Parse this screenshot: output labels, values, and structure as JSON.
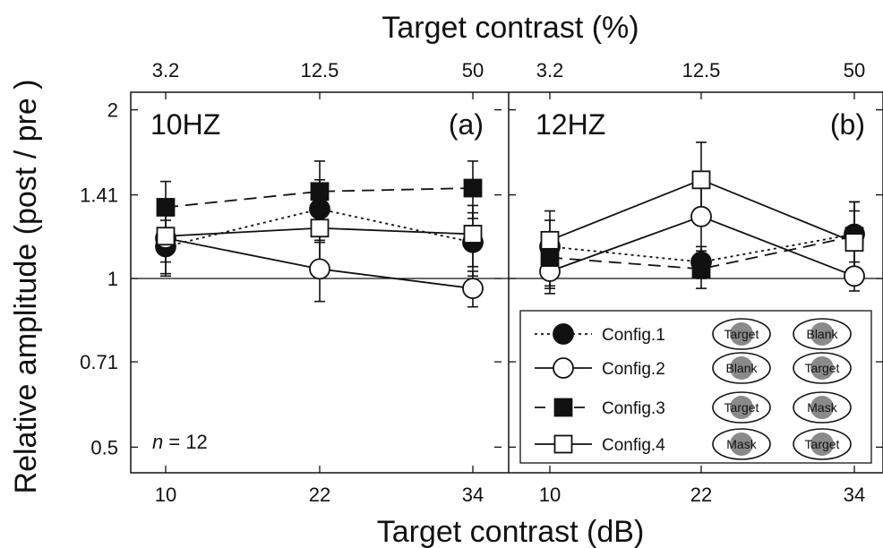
{
  "chart_data": {
    "type": "line",
    "top_axis_title": "Target contrast (%)",
    "bottom_axis_title": "Target contrast (dB)",
    "ylabel": "Relative amplitude (post / pre )",
    "y_scale": "log2",
    "ylim": [
      0.45,
      2.15
    ],
    "y_ticks": [
      0.5,
      0.71,
      1,
      1.41,
      2
    ],
    "y_tick_labels": [
      "0.5",
      "0.71",
      "1",
      "1.41",
      "2"
    ],
    "x": [
      10,
      22,
      34
    ],
    "x_tick_labels": [
      "10",
      "22",
      "34"
    ],
    "top_tick_labels": [
      "3.2",
      "12.5",
      "50"
    ],
    "reference_line": 1,
    "n_label": {
      "prefix": "n",
      "suffix": " = 12"
    },
    "panels": [
      {
        "name": "10HZ",
        "tag": "(a)",
        "series": [
          {
            "name": "Config.1",
            "values": [
              1.14,
              1.33,
              1.16
            ],
            "errors": [
              0.13,
              0.17,
              0.15
            ]
          },
          {
            "name": "Config.2",
            "values": [
              1.18,
              1.04,
              0.96
            ],
            "errors": [
              0.16,
              0.13,
              0.07
            ]
          },
          {
            "name": "Config.3",
            "values": [
              1.34,
              1.43,
              1.45
            ],
            "errors": [
              0.15,
              0.19,
              0.17
            ]
          },
          {
            "name": "Config.4",
            "values": [
              1.19,
              1.23,
              1.2
            ],
            "errors": [
              0.12,
              0.17,
              0.15
            ]
          }
        ]
      },
      {
        "name": "12HZ",
        "tag": "(b)",
        "series": [
          {
            "name": "Config.1",
            "values": [
              1.14,
              1.07,
              1.2
            ],
            "errors": [
              0.18,
              0.07,
              0.17
            ]
          },
          {
            "name": "Config.2",
            "values": [
              1.03,
              1.29,
              1.01
            ],
            "errors": [
              0.09,
              0.18,
              0.06
            ]
          },
          {
            "name": "Config.3",
            "values": [
              1.09,
              1.04,
              1.19
            ],
            "errors": [
              0.12,
              0.08,
              0.18
            ]
          },
          {
            "name": "Config.4",
            "values": [
              1.17,
              1.5,
              1.16
            ],
            "errors": [
              0.1,
              0.25,
              0.16
            ]
          }
        ]
      }
    ],
    "legend": {
      "placement": "lower-right of panel (b)",
      "entries": [
        {
          "label": "Config.1",
          "marker": "filled-circle",
          "line": "dotted",
          "left": "Target",
          "right": "Blank"
        },
        {
          "label": "Config.2",
          "marker": "open-circle",
          "line": "solid",
          "left": "Blank",
          "right": "Target"
        },
        {
          "label": "Config.3",
          "marker": "filled-square",
          "line": "dashed",
          "left": "Target",
          "right": "Mask"
        },
        {
          "label": "Config.4",
          "marker": "open-square",
          "line": "solid",
          "left": "Mask",
          "right": "Target"
        }
      ]
    },
    "colors": {
      "ink": "#111111",
      "stimulus_fill": "#8a8a8a",
      "background": "#ffffff"
    }
  }
}
